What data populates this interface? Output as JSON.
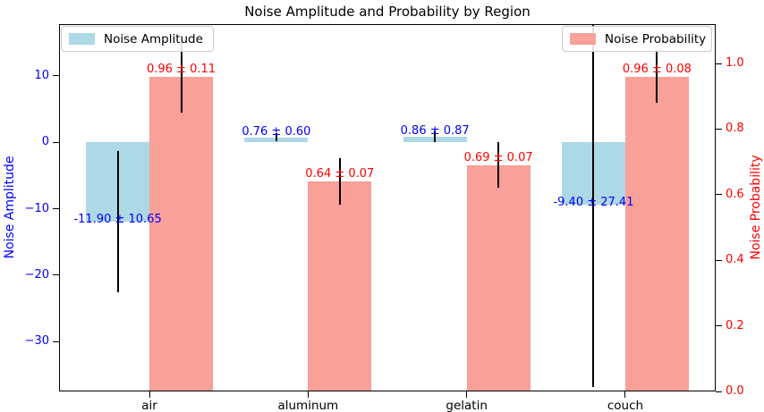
{
  "chart_data": {
    "type": "bar",
    "title": "Noise Amplitude and Probability by Region",
    "categories": [
      "air",
      "aluminum",
      "gelatin",
      "couch"
    ],
    "series": [
      {
        "name": "Noise Amplitude",
        "axis": "left",
        "bar_color": "#ADD8E6",
        "text_color": "#0000ff",
        "values": [
          -11.9,
          0.76,
          0.86,
          -9.4
        ],
        "errors": [
          10.65,
          0.6,
          0.87,
          27.41
        ],
        "value_labels": [
          "-11.90 ± 10.65",
          "0.76 ± 0.60",
          "0.86 ± 0.87",
          "-9.40 ± 27.41"
        ],
        "legend_position": "upper left"
      },
      {
        "name": "Noise Probability",
        "axis": "right",
        "bar_color": "#F9A098",
        "text_color": "#ff0000",
        "values": [
          0.96,
          0.64,
          0.69,
          0.96
        ],
        "errors": [
          0.11,
          0.07,
          0.07,
          0.08
        ],
        "value_labels": [
          "0.96 ± 0.11",
          "0.64 ± 0.07",
          "0.69 ± 0.07",
          "0.96 ± 0.08"
        ],
        "legend_position": "upper right"
      }
    ],
    "left_axis": {
      "label": "Noise Amplitude",
      "color": "#0000ff",
      "ticks": [
        10,
        0,
        -10,
        -20,
        -30
      ],
      "tick_labels": [
        "10",
        "0",
        "−10",
        "−20",
        "−30"
      ],
      "lim": [
        -37.5,
        17.8
      ]
    },
    "right_axis": {
      "label": "Noise Probability",
      "color": "#ff0000",
      "ticks": [
        1.0,
        0.8,
        0.6,
        0.4,
        0.2,
        0.0
      ],
      "tick_labels": [
        "1.0",
        "0.8",
        "0.6",
        "0.4",
        "0.2",
        "0.0"
      ],
      "lim": [
        0,
        1.12
      ]
    },
    "error_bar_color": "#000000",
    "bar_width": 0.4,
    "grid": false,
    "x_tick_color": "#000000"
  }
}
